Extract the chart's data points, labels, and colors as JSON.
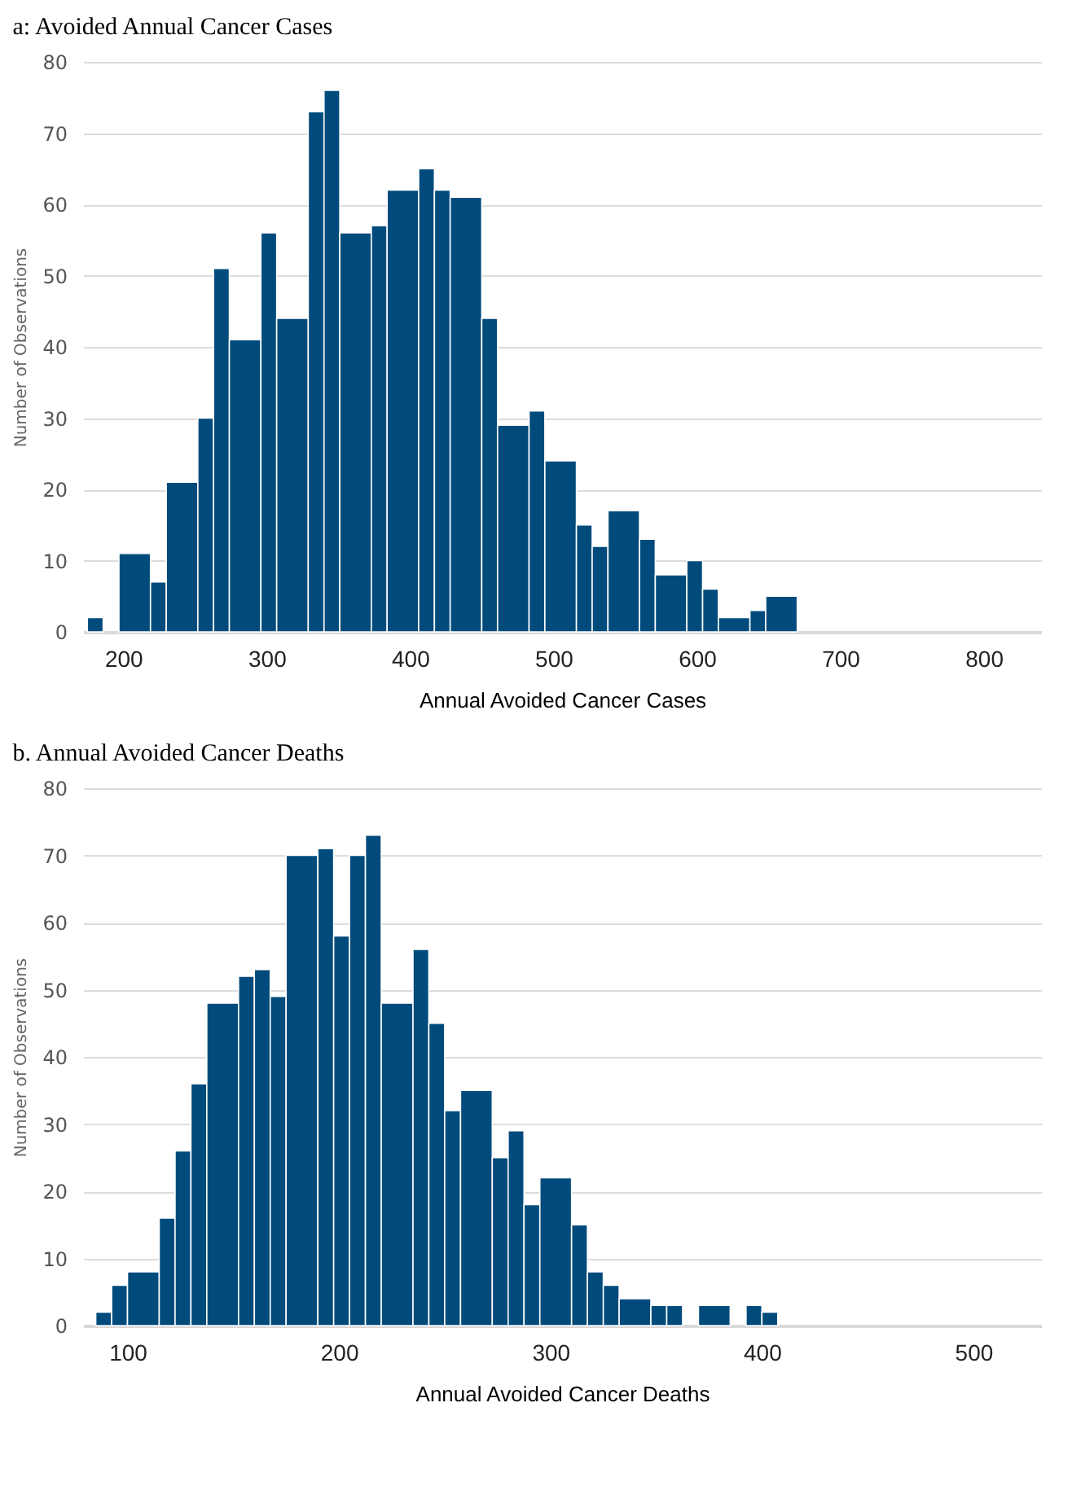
{
  "chart_data": [
    {
      "type": "histogram",
      "title": "a: Avoided Annual Cancer Cases",
      "xlabel": "Annual Avoided Cancer Cases",
      "ylabel": "Number of Observations",
      "color": "#004b7c",
      "bins": [
        175,
        186,
        197,
        219,
        230,
        252,
        263,
        274,
        296,
        307,
        329,
        340,
        351,
        373,
        384,
        406,
        417,
        428,
        450,
        461,
        483,
        494,
        516,
        527,
        538,
        560,
        571,
        593,
        604,
        615,
        637,
        648,
        670
      ],
      "values": [
        2,
        0,
        11,
        7,
        21,
        30,
        51,
        41,
        56,
        44,
        73,
        76,
        56,
        57,
        62,
        65,
        62,
        61,
        44,
        29,
        31,
        24,
        15,
        12,
        17,
        13,
        8,
        10,
        6,
        2,
        3,
        5
      ],
      "xlim": [
        172,
        840
      ],
      "xticks": [
        200,
        300,
        400,
        500,
        600,
        700,
        800
      ],
      "ylim": [
        0,
        80
      ],
      "yticks": [
        0,
        10,
        20,
        30,
        40,
        50,
        60,
        70,
        80
      ],
      "grid": "y"
    },
    {
      "type": "histogram",
      "title": "b. Annual Avoided Cancer Deaths",
      "xlabel": "Annual Avoided Cancer Deaths",
      "ylabel": "Number of Observations",
      "color": "#004b7c",
      "bins": [
        85,
        92.5,
        100,
        115,
        122.5,
        130,
        137.5,
        152.5,
        160,
        167.5,
        175,
        190,
        197.5,
        205,
        212.5,
        220,
        235,
        242.5,
        250,
        257.5,
        272.5,
        280,
        287.5,
        295,
        310,
        317.5,
        325,
        332.5,
        347.5,
        355,
        362.5,
        370,
        385,
        392.5,
        400,
        407.5
      ],
      "values": [
        2,
        6,
        8,
        16,
        26,
        36,
        48,
        52,
        53,
        49,
        70,
        71,
        58,
        70,
        73,
        48,
        56,
        45,
        32,
        35,
        25,
        29,
        18,
        22,
        15,
        8,
        6,
        4,
        3,
        3,
        0,
        3,
        0,
        3,
        2
      ],
      "xlim": [
        79,
        532
      ],
      "xticks": [
        100,
        200,
        300,
        400,
        500
      ],
      "ylim": [
        0,
        80
      ],
      "yticks": [
        0,
        10,
        20,
        30,
        40,
        50,
        60,
        70,
        80
      ],
      "grid": "y"
    }
  ]
}
